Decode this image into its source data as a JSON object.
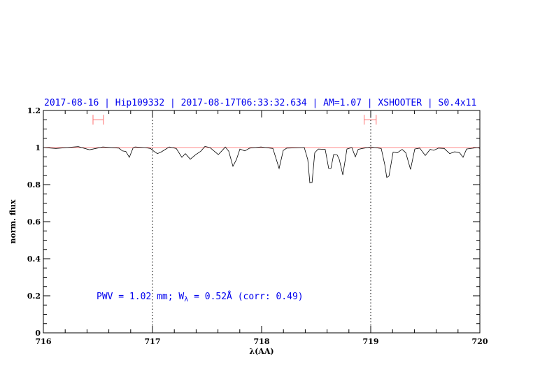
{
  "chart_data": {
    "type": "line",
    "title": "2017-08-16 | Hip109332 | 2017-08-17T06:33:32.634 | AM=1.07 | XSHOOTER | S0.4x11",
    "xlabel": "λ(AA)",
    "ylabel": "norm. flux",
    "xlim": [
      716,
      720
    ],
    "ylim": [
      0,
      1.2
    ],
    "x_ticks": [
      "716",
      "717",
      "718",
      "719",
      "720"
    ],
    "y_ticks": [
      "0",
      "0.2",
      "0.4",
      "0.6",
      "0.8",
      "1",
      "1.2"
    ],
    "grid": false,
    "vertical_dotted_lines": [
      717,
      719
    ],
    "continuum_level": 1.0,
    "error_bars": [
      {
        "x_range": [
          716.455,
          716.55
        ],
        "y": 1.15
      },
      {
        "x_range": [
          718.94,
          719.05
        ],
        "y": 1.15
      }
    ],
    "annotation": {
      "prefix": "PWV = 1.02 mm; W",
      "sub": "λ",
      "suffix": " = 0.52Å (corr: 0.49)"
    },
    "colors": {
      "spectrum": "#000000",
      "continuum": "#ff6060",
      "error_bars": "#ff7070",
      "text": "#0000ee"
    },
    "series": [
      {
        "x": [
          716.0,
          716.115,
          716.32,
          716.423,
          716.545,
          716.692,
          716.724,
          716.756,
          716.788,
          716.821,
          716.84,
          716.929,
          716.981,
          717.013,
          717.045,
          717.077,
          717.154,
          717.218,
          717.269,
          717.301,
          717.346,
          717.397,
          717.442,
          717.481,
          717.526,
          717.603,
          717.635,
          717.667,
          717.699,
          717.737,
          717.769,
          717.801,
          717.846,
          717.891,
          717.994,
          718.103,
          718.135,
          718.16,
          718.199,
          718.231,
          718.391,
          718.423,
          718.442,
          718.462,
          718.487,
          718.519,
          718.583,
          718.615,
          718.635,
          718.66,
          718.692,
          718.712,
          718.744,
          718.782,
          718.827,
          718.859,
          718.885,
          718.923,
          719.0,
          719.096,
          719.128,
          719.147,
          719.167,
          719.205,
          719.244,
          719.288,
          719.321,
          719.365,
          719.404,
          719.449,
          719.5,
          719.545,
          719.577,
          719.622,
          719.673,
          719.724,
          719.769,
          719.814,
          719.846,
          719.878,
          719.981,
          720.0
        ],
        "y": [
          1.0,
          0.995,
          1.005,
          0.988,
          1.003,
          0.997,
          0.982,
          0.979,
          0.947,
          0.997,
          1.003,
          1.0,
          0.995,
          0.98,
          0.967,
          0.975,
          1.003,
          0.995,
          0.947,
          0.967,
          0.937,
          0.962,
          0.98,
          1.006,
          1.0,
          0.962,
          0.982,
          1.003,
          0.98,
          0.899,
          0.935,
          0.992,
          0.982,
          0.997,
          1.003,
          0.995,
          0.935,
          0.887,
          0.985,
          0.997,
          1.0,
          0.935,
          0.809,
          0.811,
          0.972,
          0.992,
          0.99,
          0.887,
          0.887,
          0.962,
          0.96,
          0.935,
          0.852,
          0.992,
          1.0,
          0.95,
          0.99,
          0.995,
          1.003,
          0.995,
          0.909,
          0.839,
          0.846,
          0.975,
          0.972,
          0.99,
          0.972,
          0.882,
          0.992,
          0.997,
          0.957,
          0.99,
          0.985,
          0.997,
          0.995,
          0.967,
          0.977,
          0.972,
          0.947,
          0.992,
          1.0,
          0.995
        ]
      }
    ]
  }
}
